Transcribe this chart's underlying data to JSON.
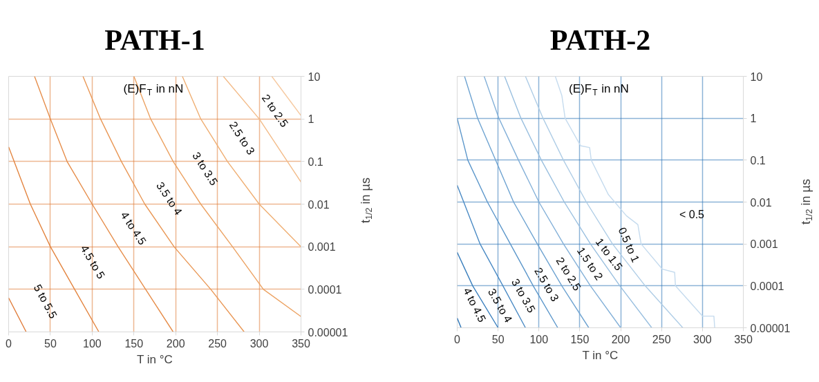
{
  "chart_data": [
    {
      "type": "line",
      "title": "PATH-1",
      "xlabel": "T in °C",
      "ylabel": "t$_{1/2}$ in µs",
      "xlim": [
        0,
        350
      ],
      "xticks": [
        0,
        50,
        100,
        150,
        200,
        250,
        300,
        350
      ],
      "ylim": [
        1e-05,
        10
      ],
      "yticks": [
        {
          "value": 1e-05,
          "label": "0.00001"
        },
        0.0001,
        0.001,
        0.01,
        0.1,
        1,
        10
      ],
      "log": "y",
      "grid": true,
      "annotations": [
        "(E)F$_{T}$ in nN",
        "5 to 5.5",
        "4.5 to 5",
        "4 to 4.5",
        "3.5 to 4",
        "3 to 3.5",
        "2.5 to 3",
        "2 to 2.5"
      ],
      "series": [
        {
          "color": "#e07b39",
          "x": [
            0,
            21
          ],
          "values": [
            6.3e-05,
            1e-05
          ]
        },
        {
          "color": "#e3843f",
          "x": [
            0,
            6.6,
            26,
            50,
            79,
            108
          ],
          "values": [
            0.22,
            0.1,
            0.01,
            0.001,
            0.0001,
            1e-05
          ]
        },
        {
          "color": "#e68d4a",
          "x": [
            31,
            50,
            70,
            100,
            131,
            164,
            197
          ],
          "values": [
            10,
            1,
            0.1,
            0.01,
            0.001,
            0.0001,
            1e-05
          ]
        },
        {
          "color": "#e99755",
          "x": [
            89,
            110,
            135,
            163,
            198,
            242,
            282
          ],
          "values": [
            10,
            1,
            0.1,
            0.01,
            0.001,
            0.0001,
            1e-05
          ]
        },
        {
          "color": "#eca262",
          "x": [
            150,
            170,
            197,
            230,
            268,
            305,
            350
          ],
          "values": [
            10,
            1,
            0.1,
            0.01,
            0.001,
            0.0001,
            2.3e-05
          ]
        },
        {
          "color": "#efae72",
          "x": [
            208,
            230,
            262,
            300,
            350
          ],
          "values": [
            10,
            1,
            0.1,
            0.01,
            0.001
          ]
        },
        {
          "color": "#f3bb88",
          "x": [
            257,
            300,
            350
          ],
          "values": [
            10,
            1,
            0.033
          ]
        },
        {
          "color": "#f6c9a0",
          "x": [
            315,
            350
          ],
          "values": [
            10,
            1.2
          ]
        }
      ]
    },
    {
      "type": "line",
      "title": "PATH-2",
      "xlabel": "T in °C",
      "ylabel": "t$_{1/2}$ in µs",
      "xlim": [
        0,
        350
      ],
      "xticks": [
        0,
        50,
        100,
        150,
        200,
        250,
        300,
        350
      ],
      "ylim": [
        1e-05,
        10
      ],
      "yticks": [
        {
          "value": 1e-05,
          "label": "0.00001"
        },
        0.0001,
        0.001,
        0.01,
        0.1,
        1,
        10
      ],
      "log": "y",
      "grid": true,
      "annotations": [
        "(E)F$_{T}$ in nN",
        "4 to 4.5",
        "3.5 to 4",
        "3 to 3.5",
        "2.5 to 3",
        "2 to 2.5",
        "1.5 to 2",
        "1 to 1.5",
        "0.5 to 1",
        "< 0.5"
      ],
      "series": [
        {
          "color": "#2e75b6",
          "x": [
            0,
            4.8
          ],
          "values": [
            1.7e-05,
            1e-05
          ]
        },
        {
          "color": "#3a7fbd",
          "x": [
            0,
            19,
            50
          ],
          "values": [
            0.00063,
            0.0001,
            1e-05
          ]
        },
        {
          "color": "#4a8ac4",
          "x": [
            0,
            8,
            28,
            56,
            83.5
          ],
          "values": [
            0.025,
            0.01,
            0.001,
            0.0001,
            1e-05
          ]
        },
        {
          "color": "#5b96ca",
          "x": [
            0,
            13,
            37,
            65,
            93,
            123
          ],
          "values": [
            1,
            0.1,
            0.01,
            0.001,
            0.0001,
            1e-05
          ]
        },
        {
          "color": "#6ea3d1",
          "x": [
            9,
            25,
            47,
            69,
            98,
            128,
            161
          ],
          "values": [
            10,
            1,
            0.1,
            0.01,
            0.001,
            0.0001,
            1e-05
          ]
        },
        {
          "color": "#83b0d8",
          "x": [
            33,
            51,
            75,
            100,
            130,
            163,
            200
          ],
          "values": [
            10,
            1,
            0.1,
            0.01,
            0.001,
            0.0001,
            1e-05
          ]
        },
        {
          "color": "#99bfdf",
          "x": [
            58,
            78,
            103,
            131,
            163,
            199,
            238
          ],
          "values": [
            10,
            1,
            0.1,
            0.01,
            0.001,
            0.0001,
            1e-05
          ]
        },
        {
          "color": "#afcde6",
          "x": [
            83.5,
            105,
            130,
            158,
            190,
            230,
            276
          ],
          "values": [
            10,
            1,
            0.1,
            0.01,
            0.001,
            0.0001,
            1e-05
          ]
        },
        {
          "color": "#c5dbee",
          "x": [
            120,
            128,
            132,
            151,
            162,
            164,
            185,
            207,
            221,
            225,
            251,
            266,
            267,
            300,
            314,
            315
          ],
          "values": [
            10,
            3.5,
            1,
            0.22,
            0.2,
            0.1,
            0.015,
            0.0047,
            0.0029,
            0.001,
            0.00025,
            0.00021,
            0.0001,
            1.9e-05,
            1.9e-05,
            1e-05
          ]
        }
      ]
    }
  ]
}
